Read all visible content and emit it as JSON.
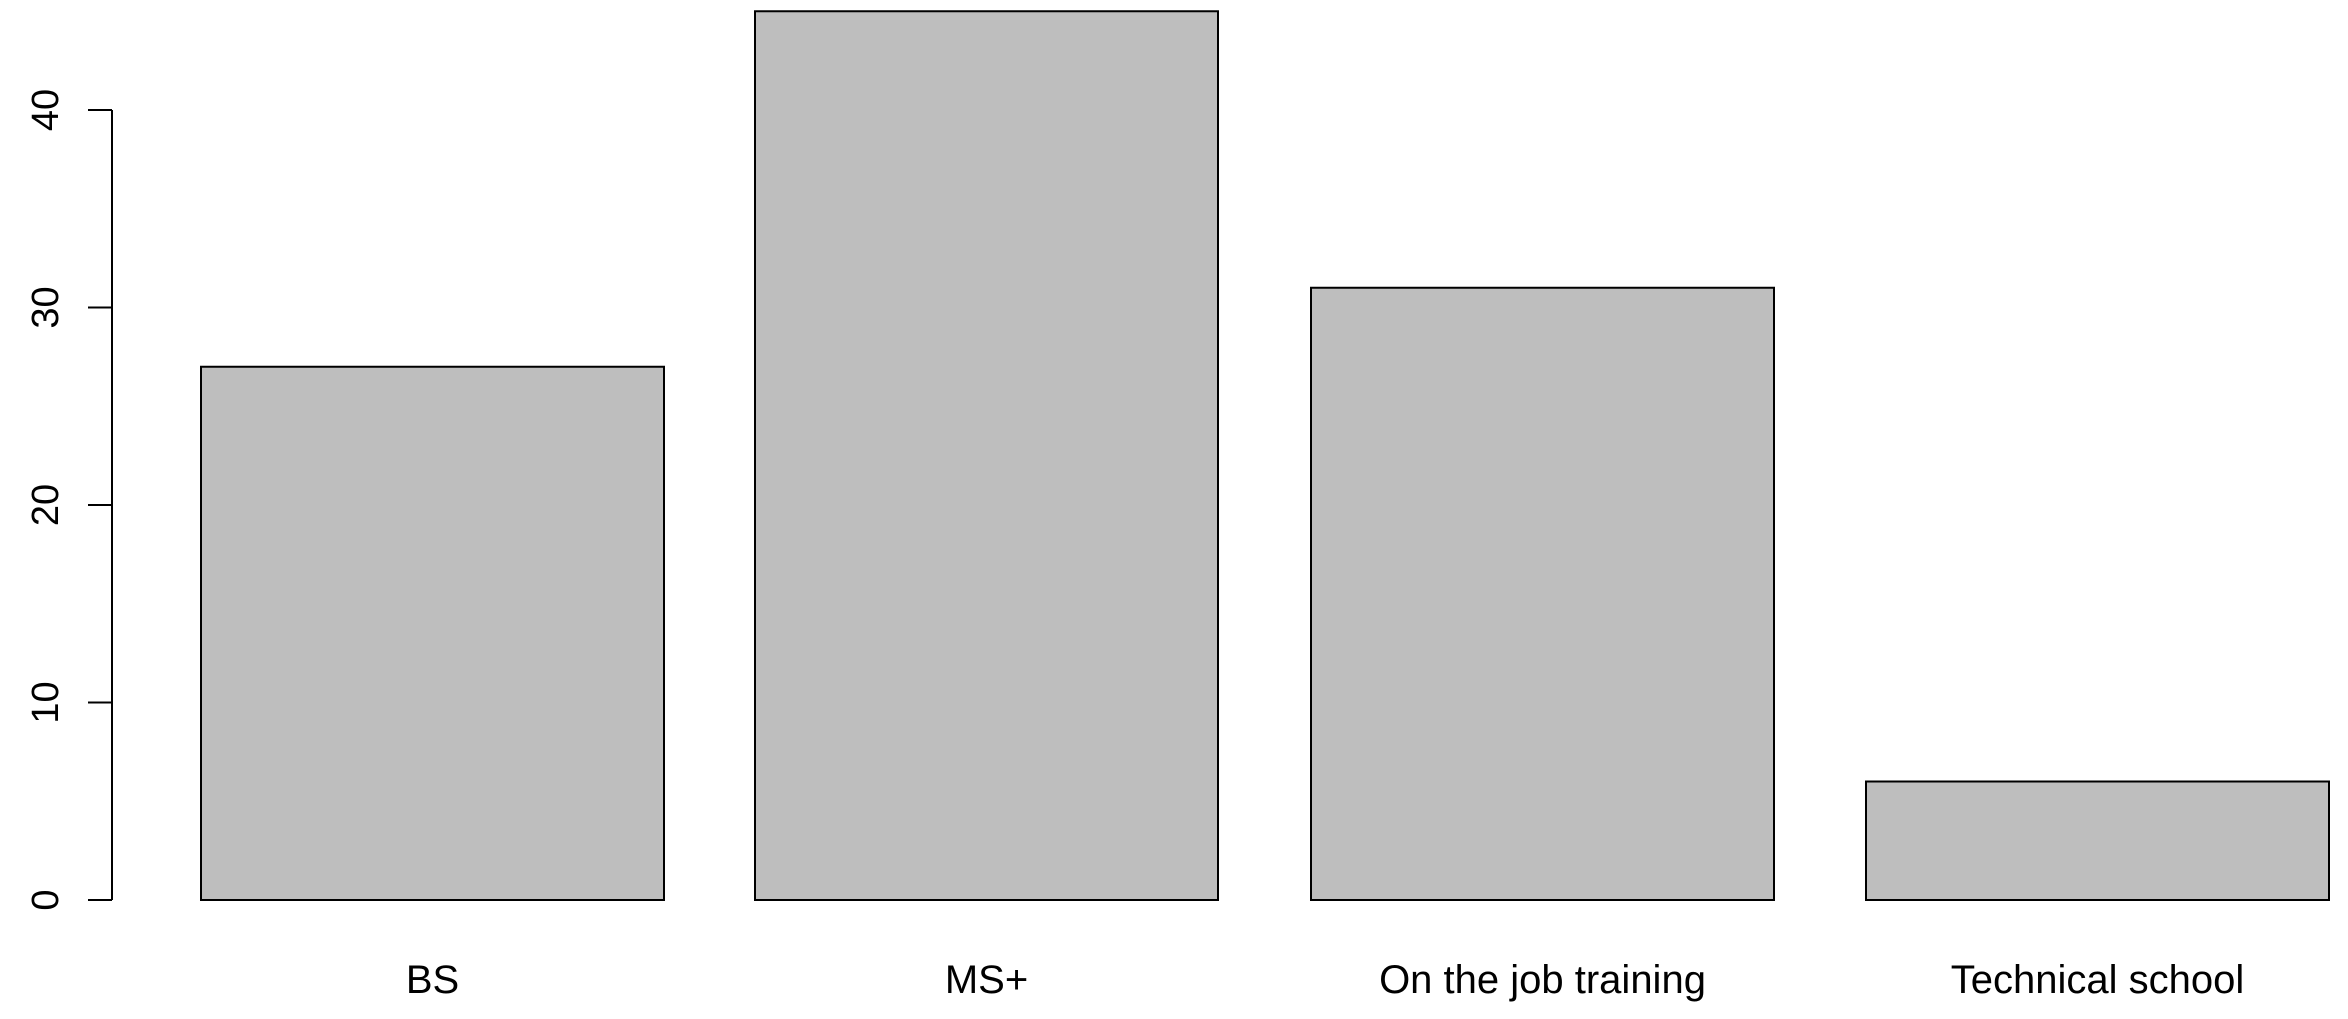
{
  "chart_data": {
    "type": "bar",
    "title": "",
    "xlabel": "",
    "ylabel": "",
    "categories": [
      "BS",
      "MS+",
      "On the job training",
      "Technical school"
    ],
    "values": [
      27,
      45,
      31,
      6
    ],
    "ylim": [
      0,
      45
    ],
    "y_ticks": [
      "0",
      "10",
      "20",
      "30",
      "40"
    ],
    "grid": false,
    "legend": "none",
    "colors": {
      "bar_fill": "#bebebe",
      "bar_stroke": "#000000",
      "axis": "#000000"
    }
  }
}
